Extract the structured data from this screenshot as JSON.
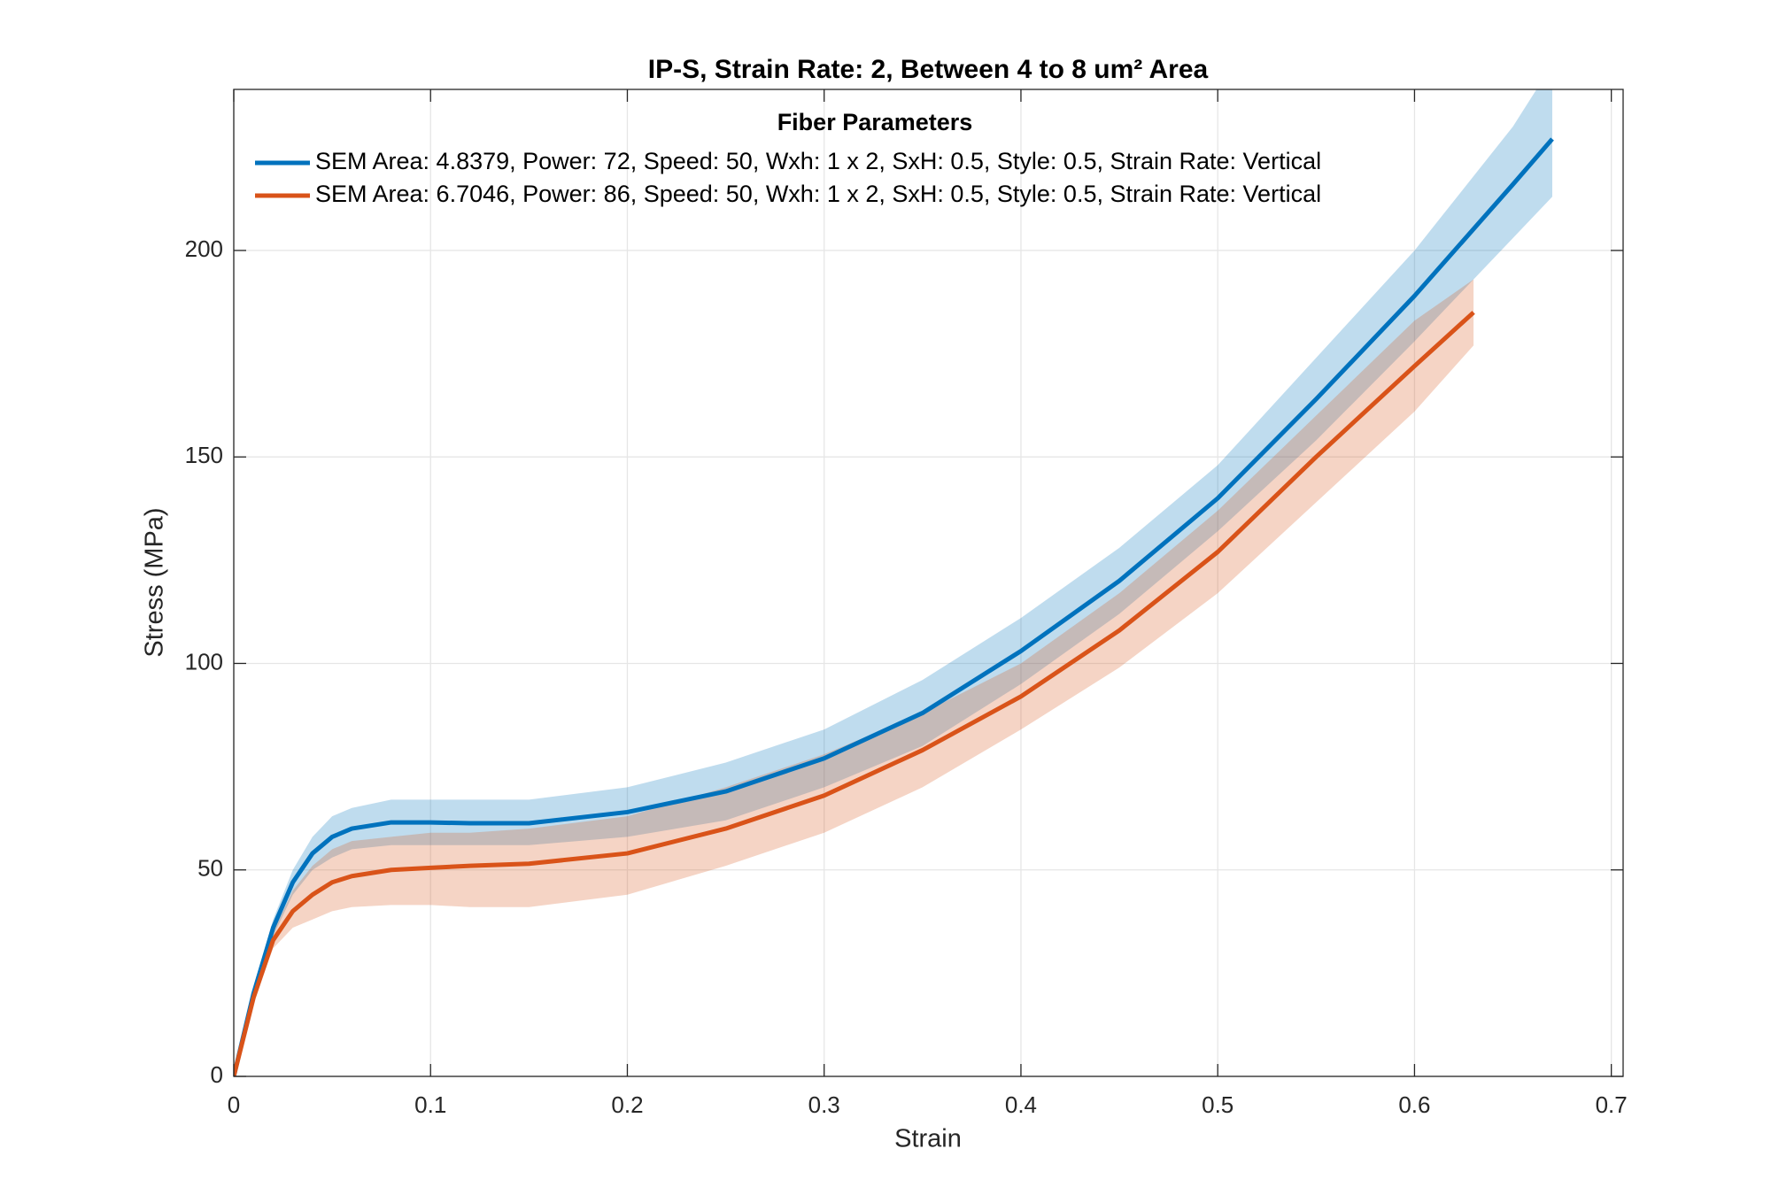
{
  "chart_data": {
    "type": "line",
    "title": "IP-S, Strain Rate: 2, Between 4 to 8 um² Area",
    "xlabel": "Strain",
    "ylabel": "Stress (MPa)",
    "legend_title": "Fiber Parameters",
    "legend_loc": "north",
    "grid": true,
    "xlim": [
      0,
      0.706
    ],
    "ylim": [
      0,
      239
    ],
    "xticks": [
      0,
      0.1,
      0.2,
      0.3,
      0.4,
      0.5,
      0.6,
      0.7
    ],
    "yticks": [
      0,
      50,
      100,
      150,
      200
    ],
    "series": [
      {
        "name": "SEM Area: 4.8379, Power: 72, Speed: 50, Wxh: 1 x 2, SxH: 0.5, Style: 0.5, Strain Rate: Vertical",
        "color": "#0072BD",
        "x": [
          0,
          0.01,
          0.02,
          0.03,
          0.04,
          0.05,
          0.06,
          0.08,
          0.1,
          0.12,
          0.15,
          0.2,
          0.25,
          0.3,
          0.35,
          0.4,
          0.45,
          0.5,
          0.55,
          0.6,
          0.65,
          0.67
        ],
        "values": [
          0,
          20,
          36,
          47,
          54,
          58,
          60,
          61.5,
          61.5,
          61.3,
          61.3,
          64,
          69,
          77,
          88,
          103,
          120,
          140,
          164,
          189,
          216,
          227
        ],
        "upper": [
          0,
          21,
          38,
          50,
          58,
          63,
          65,
          67,
          67,
          67,
          67,
          70,
          76,
          84,
          96,
          111,
          128,
          148,
          174,
          200,
          230,
          245
        ],
        "lower": [
          0,
          19,
          34,
          44,
          50,
          53,
          55,
          56,
          56,
          56,
          56,
          58,
          62,
          70,
          80,
          95,
          112,
          132,
          154,
          178,
          203,
          213
        ]
      },
      {
        "name": "SEM Area: 6.7046, Power: 86, Speed: 50, Wxh: 1 x 2, SxH: 0.5, Style: 0.5, Strain Rate: Vertical",
        "color": "#D95319",
        "x": [
          0,
          0.01,
          0.02,
          0.03,
          0.04,
          0.05,
          0.06,
          0.08,
          0.1,
          0.12,
          0.15,
          0.2,
          0.25,
          0.3,
          0.35,
          0.4,
          0.45,
          0.5,
          0.55,
          0.6,
          0.63
        ],
        "values": [
          0,
          19,
          33,
          40,
          44,
          47,
          48.5,
          50,
          50.5,
          51,
          51.5,
          54,
          60,
          68,
          79,
          92,
          108,
          127,
          150,
          172,
          185
        ],
        "upper": [
          0,
          20,
          35,
          45,
          51,
          55,
          57,
          58,
          59,
          59,
          60,
          63,
          70,
          78,
          88,
          100,
          117,
          137,
          160,
          183,
          193
        ],
        "lower": [
          0,
          18,
          31,
          36,
          38,
          40,
          41,
          41.5,
          41.5,
          41,
          41,
          44,
          51,
          59,
          70,
          84,
          99,
          117,
          139,
          161,
          177
        ]
      }
    ]
  }
}
